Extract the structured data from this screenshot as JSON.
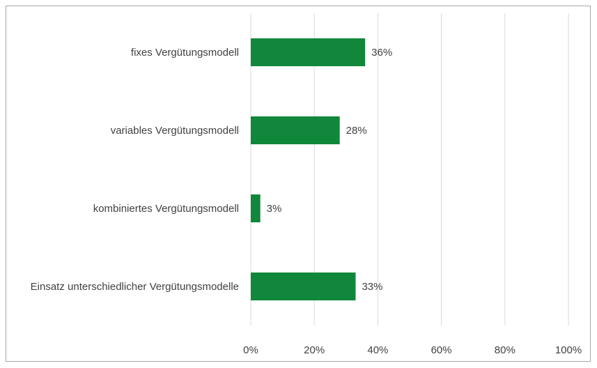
{
  "chart_data": {
    "type": "bar",
    "orientation": "horizontal",
    "categories": [
      "fixes Vergütungsmodell",
      "variables Vergütungsmodell",
      "kombiniertes Vergütungsmodell",
      "Einsatz unterschiedlicher Vergütungsmodelle"
    ],
    "values": [
      36,
      28,
      3,
      33
    ],
    "value_labels": [
      "36%",
      "28%",
      "3%",
      "33%"
    ],
    "xlim": [
      0,
      100
    ],
    "x_ticks": [
      "0%",
      "20%",
      "40%",
      "60%",
      "80%",
      "100%"
    ],
    "x_tick_values": [
      0,
      20,
      40,
      60,
      80,
      100
    ],
    "grid": "vertical",
    "colors": {
      "bar": "#10873a",
      "grid": "#d9d9d9",
      "text": "#404040",
      "border": "#a6a6a6"
    }
  }
}
